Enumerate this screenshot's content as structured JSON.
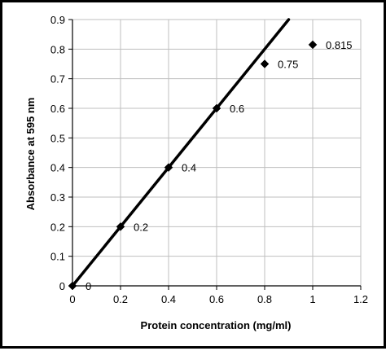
{
  "chart_data": {
    "type": "scatter",
    "title": "",
    "xlabel": "Protein concentration (mg/ml)",
    "ylabel": "Absorbance at 595 nm",
    "xlim": [
      0,
      1.2
    ],
    "ylim": [
      0,
      0.9
    ],
    "xticks": [
      "0",
      "0.2",
      "0.4",
      "0.6",
      "0.8",
      "1",
      "1.2"
    ],
    "yticks": [
      "0",
      "0.1",
      "0.2",
      "0.3",
      "0.4",
      "0.5",
      "0.6",
      "0.7",
      "0.8",
      "0.9"
    ],
    "grid": true,
    "legend": "none",
    "series": [
      {
        "marker": "diamond",
        "color": "#000000",
        "x": [
          0,
          0.2,
          0.4,
          0.6,
          0.8,
          1.0
        ],
        "y": [
          0,
          0.2,
          0.4,
          0.6,
          0.75,
          0.815
        ],
        "labels": [
          "0",
          "0.2",
          "0.4",
          "0.6",
          "0.75",
          "0.815"
        ]
      }
    ],
    "trendline": {
      "type": "linear",
      "slope": 1.0,
      "intercept": 0,
      "color": "#000000"
    }
  }
}
